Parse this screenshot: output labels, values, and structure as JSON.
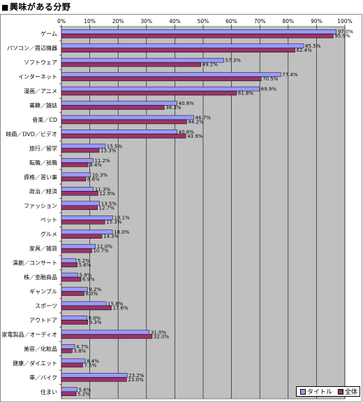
{
  "page_title": "興味がある分野",
  "title_marker": "■",
  "colors": {
    "title_series": "#9999ff",
    "all_series": "#993366",
    "plot_bg": "#c0c0c0",
    "gridline": "#000000"
  },
  "chart_data": {
    "type": "bar",
    "orientation": "horizontal",
    "title": "興味がある分野",
    "xlim": [
      0,
      100
    ],
    "x_ticks": [
      "0%",
      "10%",
      "20%",
      "30%",
      "40%",
      "50%",
      "60%",
      "70%",
      "80%",
      "90%",
      "100%"
    ],
    "grid": true,
    "legend_position": "bottom-right",
    "categories": [
      "ゲーム",
      "パソコン／周辺機器",
      "ソフトウェア",
      "インターネット",
      "漫画／アニメ",
      "書籍／雑誌",
      "音楽／CD",
      "映画／DVD／ビデオ",
      "旅行／留学",
      "転職／就職",
      "資格／習い事",
      "政治／経済",
      "ファッション",
      "ペット",
      "グルメ",
      "家具／雑貨",
      "演劇／コンサート",
      "株／金融商品",
      "ギャンブル",
      "スポーツ",
      "アウトドア",
      "家電製品／オーディオ",
      "美容／化粧品",
      "健康／ダイエット",
      "車／バイク",
      "住まい"
    ],
    "series": [
      {
        "name": "タイトル",
        "values": [
          97.0,
          85.5,
          57.3,
          77.4,
          69.9,
          40.8,
          46.7,
          40.8,
          15.5,
          11.2,
          10.3,
          11.3,
          13.5,
          18.1,
          18.0,
          12.0,
          5.2,
          5.8,
          9.2,
          15.8,
          9.0,
          31.0,
          4.7,
          8.4,
          23.2,
          5.6
        ],
        "labels": [
          "97.0%",
          "85.5%",
          "57.3%",
          "77.4%",
          "69.9%",
          "40.8%",
          "46.7%",
          "40.8%",
          "15.5%",
          "11.2%",
          "10.3%",
          "11.3%",
          "13.5%",
          "18.1%",
          "18.0%",
          "12.0%",
          "5.2%",
          "5.8%",
          "9.2%",
          "15.8%",
          "9.0%",
          "31.0%",
          "4.7%",
          "8.4%",
          "23.2%",
          "5.6%"
        ]
      },
      {
        "name": "全体",
        "values": [
          95.9,
          82.4,
          49.2,
          70.5,
          61.8,
          36.3,
          44.2,
          43.9,
          13.3,
          9.4,
          8.6,
          12.9,
          12.7,
          15.3,
          14.3,
          10.7,
          5.6,
          6.9,
          8.0,
          17.6,
          9.3,
          32.0,
          3.8,
          7.5,
          23.0,
          5.2
        ],
        "labels": [
          "95.9%",
          "82.4%",
          "49.2%",
          "70.5%",
          "61.8%",
          "36.3%",
          "44.2%",
          "43.9%",
          "13.3%",
          "9.4%",
          "8.6%",
          "12.9%",
          "12.7%",
          "15.3%",
          "14.3%",
          "10.7%",
          "5.6%",
          "6.9%",
          "8.0%",
          "17.6%",
          "9.3%",
          "32.0%",
          "3.8%",
          "7.5%",
          "23.0%",
          "5.2%"
        ]
      }
    ]
  }
}
